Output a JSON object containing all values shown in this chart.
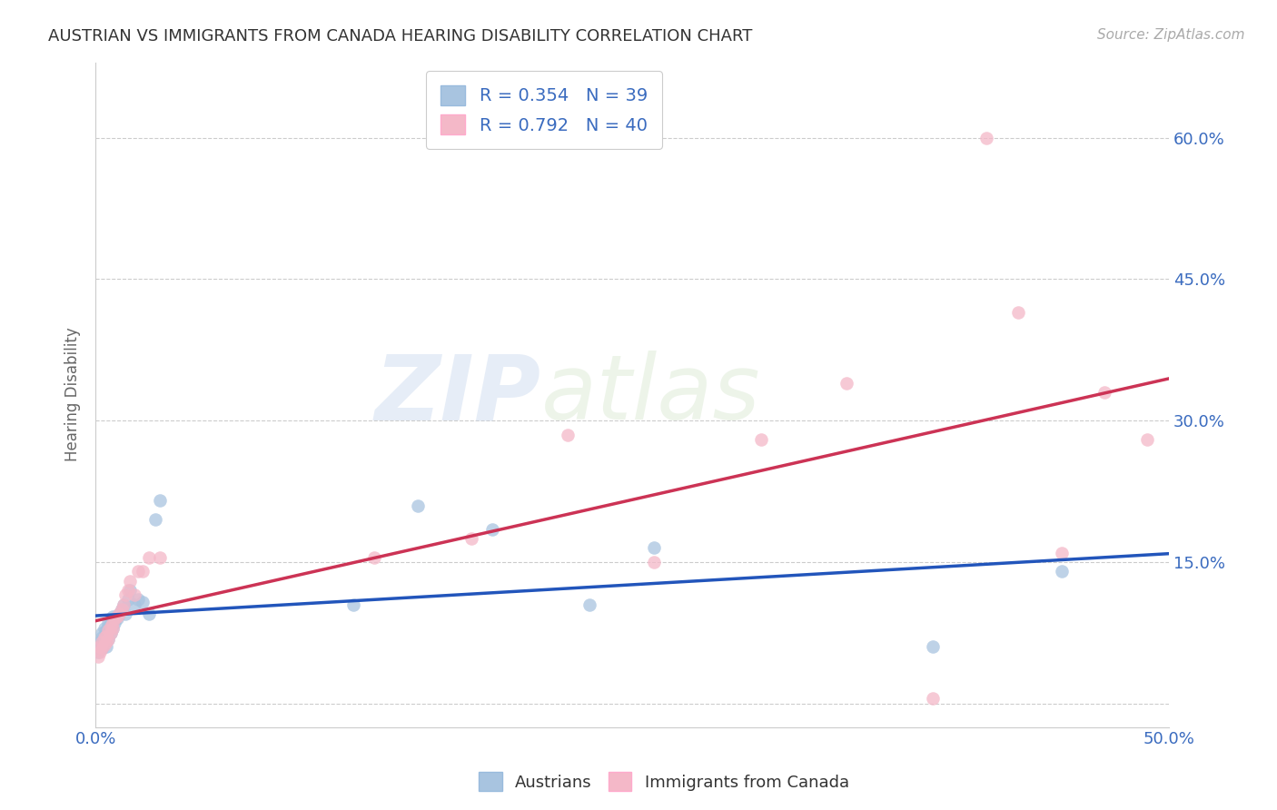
{
  "title": "AUSTRIAN VS IMMIGRANTS FROM CANADA HEARING DISABILITY CORRELATION CHART",
  "source": "Source: ZipAtlas.com",
  "ylabel": "Hearing Disability",
  "ytick_values": [
    0.0,
    0.15,
    0.3,
    0.45,
    0.6
  ],
  "ytick_labels": [
    "",
    "15.0%",
    "30.0%",
    "45.0%",
    "60.0%"
  ],
  "xlim": [
    0.0,
    0.5
  ],
  "ylim": [
    -0.025,
    0.68
  ],
  "background_color": "#ffffff",
  "grid_color": "#cccccc",
  "legend1_label": "R = 0.354   N = 39",
  "legend2_label": "R = 0.792   N = 40",
  "legend_footer1": "Austrians",
  "legend_footer2": "Immigrants from Canada",
  "blue_color": "#a8c4e0",
  "pink_color": "#f4b8c8",
  "line_blue": "#2255bb",
  "line_pink": "#cc3355",
  "watermark_zip": "ZIP",
  "watermark_atlas": "atlas",
  "title_fontsize": 13,
  "source_fontsize": 11,
  "tick_fontsize": 13,
  "ylabel_fontsize": 12,
  "austrians_x": [
    0.001,
    0.002,
    0.002,
    0.003,
    0.003,
    0.003,
    0.004,
    0.004,
    0.005,
    0.005,
    0.005,
    0.006,
    0.006,
    0.006,
    0.007,
    0.007,
    0.008,
    0.008,
    0.009,
    0.01,
    0.011,
    0.012,
    0.013,
    0.014,
    0.015,
    0.016,
    0.018,
    0.02,
    0.022,
    0.025,
    0.028,
    0.03,
    0.12,
    0.15,
    0.185,
    0.23,
    0.26,
    0.39,
    0.45
  ],
  "austrians_y": [
    0.055,
    0.06,
    0.065,
    0.058,
    0.07,
    0.075,
    0.065,
    0.08,
    0.06,
    0.072,
    0.078,
    0.068,
    0.082,
    0.085,
    0.075,
    0.088,
    0.08,
    0.092,
    0.085,
    0.09,
    0.095,
    0.1,
    0.105,
    0.095,
    0.11,
    0.12,
    0.105,
    0.11,
    0.108,
    0.095,
    0.195,
    0.215,
    0.105,
    0.21,
    0.185,
    0.105,
    0.165,
    0.06,
    0.14
  ],
  "canada_x": [
    0.001,
    0.002,
    0.002,
    0.003,
    0.003,
    0.004,
    0.004,
    0.005,
    0.005,
    0.006,
    0.006,
    0.007,
    0.007,
    0.008,
    0.008,
    0.009,
    0.01,
    0.011,
    0.012,
    0.013,
    0.014,
    0.015,
    0.016,
    0.018,
    0.02,
    0.022,
    0.025,
    0.03,
    0.13,
    0.175,
    0.22,
    0.26,
    0.31,
    0.35,
    0.39,
    0.415,
    0.43,
    0.45,
    0.47,
    0.49
  ],
  "canada_y": [
    0.05,
    0.055,
    0.06,
    0.058,
    0.065,
    0.062,
    0.07,
    0.065,
    0.072,
    0.068,
    0.078,
    0.075,
    0.082,
    0.08,
    0.085,
    0.09,
    0.092,
    0.095,
    0.1,
    0.105,
    0.115,
    0.12,
    0.13,
    0.115,
    0.14,
    0.14,
    0.155,
    0.155,
    0.155,
    0.175,
    0.285,
    0.15,
    0.28,
    0.34,
    0.005,
    0.6,
    0.415,
    0.16,
    0.33,
    0.28
  ]
}
